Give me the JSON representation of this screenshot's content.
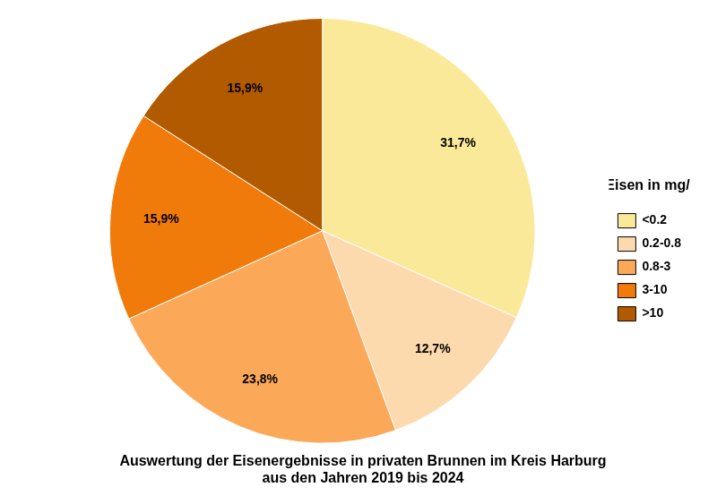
{
  "chart_data": {
    "type": "pie",
    "title": [
      "Auswertung der Eisenergebnisse in privaten Brunnen im Kreis Harburg",
      "aus den Jahren 2019 bis 2024"
    ],
    "legend_title": "Eisen in mg/l",
    "categories": [
      "<0.2",
      "0.2-0.8",
      "0.8-3",
      "3-10",
      ">10"
    ],
    "values": [
      31.7,
      12.7,
      23.8,
      15.9,
      15.9
    ],
    "value_labels": [
      "31,7%",
      "12,7%",
      "23,8%",
      "15,9%",
      "15,9%"
    ],
    "colors": [
      "#fbe99a",
      "#fdd9ae",
      "#fba959",
      "#f07a0a",
      "#b25a00"
    ],
    "legend": "right",
    "data_labels": true
  }
}
